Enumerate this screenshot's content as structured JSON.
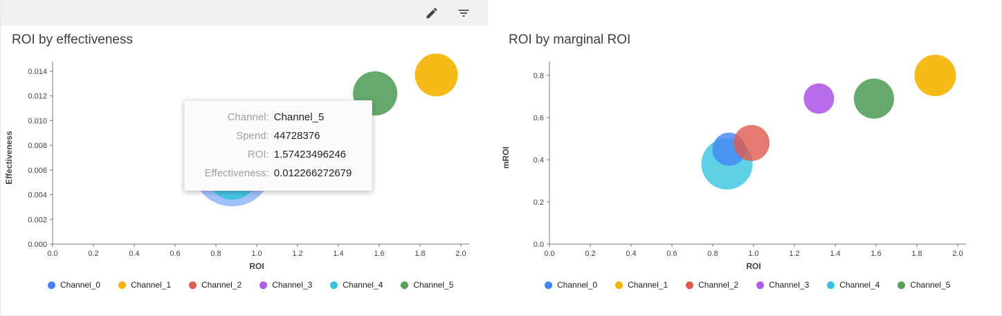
{
  "toolbar": {
    "icons": [
      {
        "name": "edit-icon"
      },
      {
        "name": "filter-icon"
      }
    ]
  },
  "legend": [
    {
      "label": "Channel_0",
      "color": "#4285F4"
    },
    {
      "label": "Channel_1",
      "color": "#F4B400"
    },
    {
      "label": "Channel_2",
      "color": "#E05A4F"
    },
    {
      "label": "Channel_3",
      "color": "#AF5CE8"
    },
    {
      "label": "Channel_4",
      "color": "#35C4DF"
    },
    {
      "label": "Channel_5",
      "color": "#55A05C"
    }
  ],
  "tooltip": {
    "rows": [
      {
        "label": "Channel:",
        "value": "Channel_5"
      },
      {
        "label": "Spend:",
        "value": "44728376"
      },
      {
        "label": "ROI:",
        "value": "1.57423496246"
      },
      {
        "label": "Effectiveness:",
        "value": "0.012266272679"
      }
    ]
  },
  "chart_data": [
    {
      "type": "scatter",
      "title": "ROI by effectiveness",
      "xlabel": "ROI",
      "ylabel": "Effectiveness",
      "xlim": [
        0.0,
        2.0
      ],
      "ylim": [
        0.0,
        0.014
      ],
      "xticks": [
        "0.0",
        "0.2",
        "0.4",
        "0.6",
        "0.8",
        "1.0",
        "1.2",
        "1.4",
        "1.6",
        "1.8",
        "2.0"
      ],
      "yticks": [
        "0.000",
        "0.002",
        "0.004",
        "0.006",
        "0.008",
        "0.010",
        "0.012",
        "0.014"
      ],
      "grid": false,
      "legend_position": "bottom",
      "points": [
        {
          "name": "Channel_0",
          "x": 0.88,
          "y": 0.0063,
          "r": 58,
          "color": "#4285F4",
          "opacity": 0.5
        },
        {
          "name": "Channel_4",
          "x": 0.88,
          "y": 0.0056,
          "r": 36,
          "color": "#35C4DF",
          "opacity": 0.85
        },
        {
          "name": "Channel_5",
          "x": 1.58,
          "y": 0.0122,
          "r": 32,
          "color": "#55A05C",
          "opacity": 0.9
        },
        {
          "name": "Channel_1",
          "x": 1.88,
          "y": 0.0137,
          "r": 31,
          "color": "#F4B400",
          "opacity": 0.9
        }
      ]
    },
    {
      "type": "scatter",
      "title": "ROI by marginal ROI",
      "xlabel": "ROI",
      "ylabel": "mROI",
      "xlim": [
        0.0,
        2.0
      ],
      "ylim": [
        0.0,
        0.82
      ],
      "xticks": [
        "0.0",
        "0.2",
        "0.4",
        "0.6",
        "0.8",
        "1.0",
        "1.2",
        "1.4",
        "1.6",
        "1.8",
        "2.0"
      ],
      "yticks": [
        "0.0",
        "0.2",
        "0.4",
        "0.6",
        "0.8"
      ],
      "grid": false,
      "legend_position": "bottom",
      "points": [
        {
          "name": "Channel_4",
          "x": 0.87,
          "y": 0.38,
          "r": 37,
          "color": "#35C4DF",
          "opacity": 0.8
        },
        {
          "name": "Channel_0",
          "x": 0.88,
          "y": 0.45,
          "r": 24,
          "color": "#4285F4",
          "opacity": 0.8
        },
        {
          "name": "Channel_2",
          "x": 0.99,
          "y": 0.48,
          "r": 26,
          "color": "#E05A4F",
          "opacity": 0.8
        },
        {
          "name": "Channel_3",
          "x": 1.32,
          "y": 0.69,
          "r": 22,
          "color": "#AF5CE8",
          "opacity": 0.9
        },
        {
          "name": "Channel_5",
          "x": 1.59,
          "y": 0.69,
          "r": 29,
          "color": "#55A05C",
          "opacity": 0.9
        },
        {
          "name": "Channel_1",
          "x": 1.89,
          "y": 0.8,
          "r": 30,
          "color": "#F4B400",
          "opacity": 0.9
        }
      ]
    }
  ]
}
